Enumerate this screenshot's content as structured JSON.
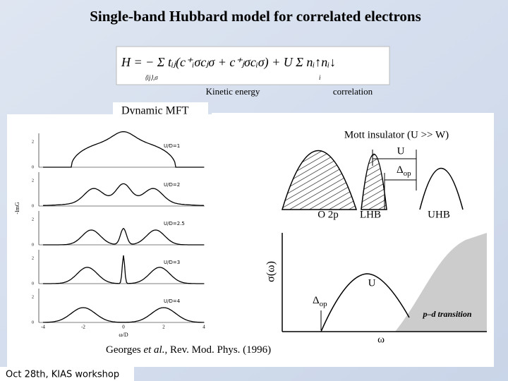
{
  "header": {
    "title": "Single-band Hubbard model for correlated electrons"
  },
  "formula": {
    "main": "H = − Σ tᵢⱼ(c⁺ᵢσcⱼσ + c⁺ⱼσcᵢσ) + U Σ nᵢ↑nᵢ↓",
    "sum1_index": "⟨ij⟩,σ",
    "sum2_index": "i",
    "kinetic_label": "Kinetic energy",
    "correlation_label": "correlation"
  },
  "dmft": {
    "heading": "Dynamic MFT",
    "y_label": "-ImG",
    "x_label": "ω/D",
    "panels": [
      "U/D=1",
      "U/D=2",
      "U/D=2.5",
      "U/D=3",
      "U/D=4"
    ],
    "x_ticks": [
      "-4",
      "-2",
      "0",
      "2",
      "4"
    ],
    "y_ticks": [
      "2",
      "0"
    ],
    "citation": {
      "authors": "Georges ",
      "etal": "et al.",
      "ref": ", Rev. Mod. Phys.  (1996)"
    }
  },
  "mott": {
    "title": "Mott insulator (U >> W)",
    "U": "U",
    "gap": {
      "symbol": "Δ",
      "sub": "op"
    },
    "bands": [
      "O 2p",
      "LHB",
      "UHB"
    ]
  },
  "optical": {
    "y_label": "σ(ω)",
    "x_label": "ω",
    "U": "U",
    "gap": {
      "symbol": "Δ",
      "sub": "op"
    },
    "transition": "p–d transition"
  },
  "footer": {
    "text": "Oct 28th, KIAS workshop"
  }
}
